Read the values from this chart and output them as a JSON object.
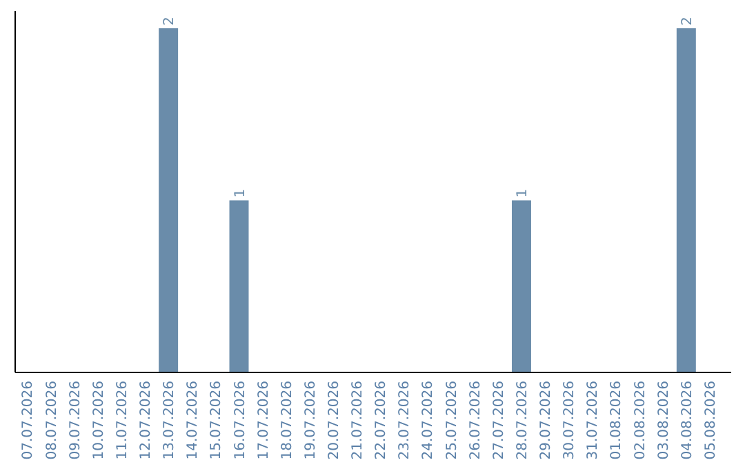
{
  "chart_data": {
    "type": "bar",
    "categories": [
      "07.07.2026",
      "08.07.2026",
      "09.07.2026",
      "10.07.2026",
      "11.07.2026",
      "12.07.2026",
      "13.07.2026",
      "14.07.2026",
      "15.07.2026",
      "16.07.2026",
      "17.07.2026",
      "18.07.2026",
      "19.07.2026",
      "20.07.2026",
      "21.07.2026",
      "22.07.2026",
      "23.07.2026",
      "24.07.2026",
      "25.07.2026",
      "26.07.2026",
      "27.07.2026",
      "28.07.2026",
      "29.07.2026",
      "30.07.2026",
      "31.07.2026",
      "01.08.2026",
      "02.08.2026",
      "03.08.2026",
      "04.08.2026",
      "05.08.2026"
    ],
    "values": [
      0,
      0,
      0,
      0,
      0,
      0,
      2,
      0,
      0,
      1,
      0,
      0,
      0,
      0,
      0,
      0,
      0,
      0,
      0,
      0,
      0,
      1,
      0,
      0,
      0,
      0,
      0,
      0,
      2,
      0
    ],
    "value_labels": [
      null,
      null,
      null,
      null,
      null,
      null,
      "2",
      null,
      null,
      "1",
      null,
      null,
      null,
      null,
      null,
      null,
      null,
      null,
      null,
      null,
      null,
      "1",
      null,
      null,
      null,
      null,
      null,
      null,
      "2",
      null
    ],
    "color": "#6a8caa"
  }
}
